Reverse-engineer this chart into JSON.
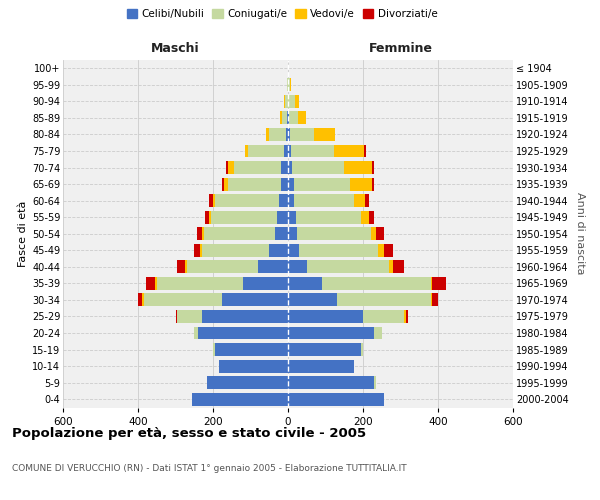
{
  "age_groups": [
    "0-4",
    "5-9",
    "10-14",
    "15-19",
    "20-24",
    "25-29",
    "30-34",
    "35-39",
    "40-44",
    "45-49",
    "50-54",
    "55-59",
    "60-64",
    "65-69",
    "70-74",
    "75-79",
    "80-84",
    "85-89",
    "90-94",
    "95-99",
    "100+"
  ],
  "birth_years": [
    "2000-2004",
    "1995-1999",
    "1990-1994",
    "1985-1989",
    "1980-1984",
    "1975-1979",
    "1970-1974",
    "1965-1969",
    "1960-1964",
    "1955-1959",
    "1950-1954",
    "1945-1949",
    "1940-1944",
    "1935-1939",
    "1930-1934",
    "1925-1929",
    "1920-1924",
    "1915-1919",
    "1910-1914",
    "1905-1909",
    "≤ 1904"
  ],
  "male": {
    "celibi": [
      255,
      215,
      185,
      195,
      240,
      230,
      175,
      120,
      80,
      50,
      35,
      30,
      25,
      20,
      20,
      12,
      5,
      2,
      1,
      0,
      0
    ],
    "coniugati": [
      0,
      0,
      0,
      5,
      10,
      65,
      210,
      230,
      190,
      180,
      190,
      175,
      170,
      140,
      125,
      95,
      45,
      15,
      8,
      2,
      0
    ],
    "vedovi": [
      0,
      0,
      0,
      0,
      0,
      0,
      5,
      5,
      5,
      5,
      5,
      5,
      5,
      12,
      15,
      8,
      10,
      5,
      2,
      0,
      0
    ],
    "divorziati": [
      0,
      0,
      0,
      0,
      0,
      5,
      10,
      25,
      20,
      15,
      12,
      12,
      10,
      5,
      5,
      0,
      0,
      0,
      0,
      0,
      0
    ]
  },
  "female": {
    "nubili": [
      255,
      230,
      175,
      195,
      230,
      200,
      130,
      90,
      50,
      30,
      25,
      20,
      15,
      15,
      10,
      8,
      5,
      2,
      1,
      0,
      0
    ],
    "coniugate": [
      0,
      5,
      0,
      5,
      20,
      110,
      250,
      290,
      220,
      210,
      195,
      175,
      160,
      150,
      140,
      115,
      65,
      25,
      18,
      5,
      0
    ],
    "vedove": [
      0,
      0,
      0,
      0,
      0,
      5,
      5,
      5,
      10,
      15,
      15,
      20,
      30,
      60,
      75,
      80,
      55,
      20,
      10,
      2,
      0
    ],
    "divorziate": [
      0,
      0,
      0,
      0,
      0,
      5,
      15,
      35,
      30,
      25,
      20,
      15,
      10,
      5,
      5,
      5,
      0,
      0,
      0,
      0,
      0
    ]
  },
  "colors": {
    "celibi": "#4472c4",
    "coniugati": "#c5d9a0",
    "vedovi": "#ffc000",
    "divorziati": "#cc0000"
  },
  "xlim": 600,
  "title": "Popolazione per età, sesso e stato civile - 2005",
  "subtitle": "COMUNE DI VERUCCHIO (RN) - Dati ISTAT 1° gennaio 2005 - Elaborazione TUTTITALIA.IT",
  "ylabel_left": "Fasce di età",
  "ylabel_right": "Anni di nascita",
  "xlabel_left": "Maschi",
  "xlabel_right": "Femmine",
  "bg_color": "#f0f0f0",
  "grid_color": "#cccccc"
}
